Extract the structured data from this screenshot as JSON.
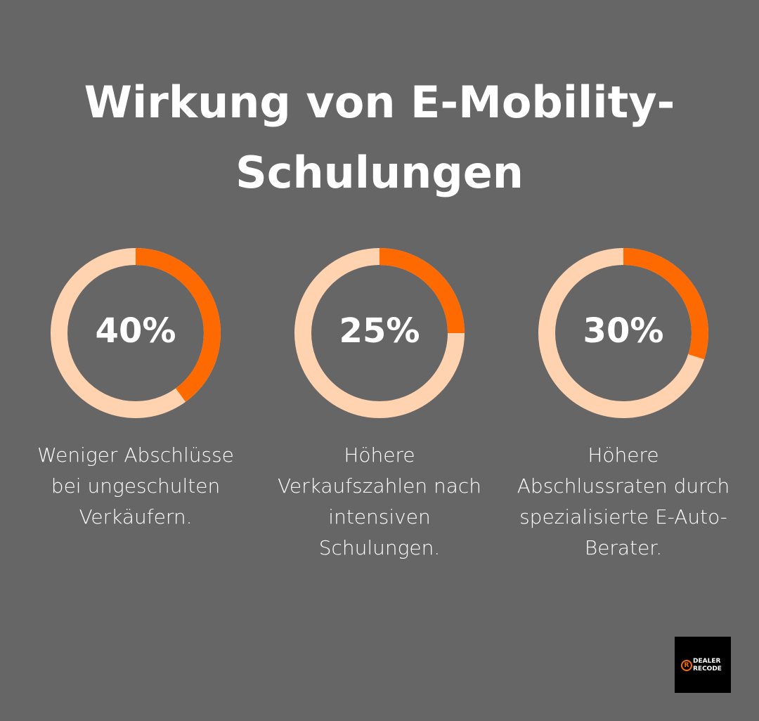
{
  "title_lines": [
    "Wirkung von E-Mobility-",
    "Schulungen"
  ],
  "chart_data": [
    {
      "type": "donut",
      "values": [
        40
      ],
      "value_labels": [
        "40%"
      ],
      "caption": "Weniger Abschlüsse bei ungeschulten Verkäufern.",
      "color": "#ff6a00",
      "track_color": "#ffd3b0"
    },
    {
      "type": "donut",
      "values": [
        25
      ],
      "value_labels": [
        "25%"
      ],
      "caption": "Höhere Verkaufszahlen nach intensiven Schulungen.",
      "color": "#ff6a00",
      "track_color": "#ffd3b0"
    },
    {
      "type": "donut",
      "values": [
        30
      ],
      "value_labels": [
        "30%"
      ],
      "caption": "Höhere Abschlussraten durch spezialisierte E-Auto-Berater.",
      "color": "#ff6a00",
      "track_color": "#ffd3b0"
    }
  ],
  "logo": {
    "mark": "R",
    "line1": "DEALER",
    "line2": "RECODE"
  }
}
